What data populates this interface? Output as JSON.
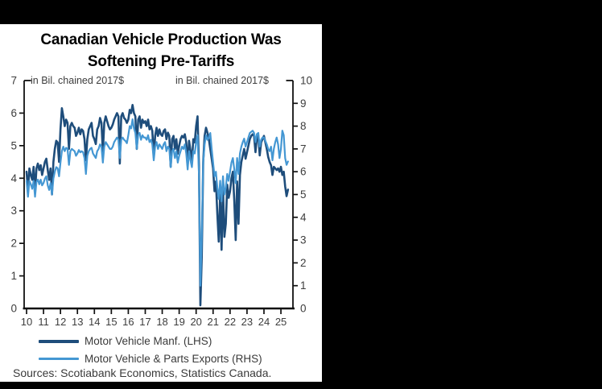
{
  "header": {
    "title_lines": [
      "Canadian Vehicle Production Was",
      "Softening Pre-Tariffs"
    ]
  },
  "footer": {
    "sources": "Sources: Scotiabank Economics, Statistics Canada."
  },
  "chart_data": {
    "type": "line",
    "title": "Canadian Vehicle Production Was Softening Pre-Tariffs",
    "grid": false,
    "legend_position": "bottom",
    "x": {
      "start_year": 2010,
      "frequency": "monthly",
      "tick_labels": [
        "10",
        "11",
        "12",
        "13",
        "14",
        "15",
        "16",
        "17",
        "18",
        "19",
        "20",
        "21",
        "22",
        "23",
        "24",
        "25"
      ]
    },
    "left_axis": {
      "title": "in Bil. chained 2017$",
      "min": 0,
      "max": 7,
      "tick_labels": [
        "0",
        "1",
        "2",
        "3",
        "4",
        "5",
        "6",
        "7"
      ]
    },
    "right_axis": {
      "title": "in Bil. chained 2017$",
      "min": 0,
      "max": 10,
      "tick_labels": [
        "0",
        "1",
        "2",
        "3",
        "4",
        "5",
        "6",
        "7",
        "8",
        "9",
        "10"
      ]
    },
    "series": [
      {
        "name": "Motor Vehicle Manf. (LHS)",
        "axis": "left",
        "color": "#1E4D7B",
        "values": [
          4.2,
          3.6,
          4.3,
          4.1,
          3.95,
          4.35,
          3.55,
          4.3,
          4.45,
          4.25,
          4.4,
          4.1,
          4.3,
          4.5,
          4.6,
          4.25,
          3.95,
          4.3,
          3.5,
          4.5,
          4.9,
          5.15,
          5.1,
          4.5,
          5.5,
          6.15,
          5.9,
          5.6,
          5.8,
          5.7,
          4.9,
          5.6,
          5.7,
          5.6,
          5.55,
          5.3,
          5.4,
          5.55,
          5.35,
          5.5,
          5.45,
          5.2,
          4.55,
          5.2,
          5.5,
          5.6,
          5.7,
          5.3,
          5.2,
          5.05,
          5.5,
          5.6,
          5.85,
          5.7,
          4.8,
          5.7,
          5.9,
          5.75,
          5.6,
          5.5,
          5.55,
          5.65,
          5.8,
          5.9,
          6.0,
          5.9,
          4.45,
          5.9,
          6.0,
          5.85,
          5.8,
          5.7,
          5.8,
          6.1,
          6.0,
          6.25,
          6.0,
          5.9,
          4.9,
          5.8,
          5.9,
          5.55,
          5.8,
          5.7,
          5.75,
          5.6,
          5.8,
          5.5,
          5.6,
          5.45,
          4.65,
          5.3,
          5.55,
          5.3,
          5.5,
          5.35,
          5.3,
          5.45,
          5.5,
          5.2,
          5.4,
          5.3,
          4.35,
          5.2,
          5.3,
          4.9,
          5.2,
          4.75,
          5.0,
          5.2,
          5.3,
          5.25,
          5.35,
          5.1,
          4.4,
          5.15,
          4.85,
          4.5,
          5.2,
          5.1,
          5.6,
          5.9,
          4.4,
          0.1,
          1.6,
          4.5,
          5.3,
          5.55,
          5.4,
          5.2,
          4.9,
          4.6,
          4.3,
          3.6,
          3.9,
          2.9,
          2.05,
          3.5,
          1.8,
          3.7,
          2.2,
          2.6,
          3.8,
          3.4,
          3.6,
          4.0,
          4.2,
          3.3,
          2.1,
          3.9,
          2.6,
          4.1,
          4.5,
          4.7,
          4.9,
          4.6,
          4.8,
          5.0,
          5.2,
          5.3,
          5.35,
          5.3,
          4.8,
          5.25,
          5.3,
          4.7,
          5.1,
          5.2,
          5.3,
          5.1,
          4.9,
          4.65,
          4.5,
          4.4,
          4.1,
          4.35,
          4.3,
          4.25,
          4.3,
          4.2,
          4.35,
          4.1,
          4.2,
          3.75,
          3.45,
          3.65
        ]
      },
      {
        "name": "Motor Vehicle & Parts Exports (RHS)",
        "axis": "right",
        "color": "#4497D3",
        "values": [
          5.6,
          4.9,
          5.6,
          5.45,
          5.25,
          5.6,
          4.9,
          5.55,
          5.65,
          5.45,
          5.65,
          5.4,
          5.5,
          5.7,
          5.8,
          5.4,
          5.2,
          5.5,
          5.0,
          5.7,
          6.0,
          6.2,
          6.15,
          5.8,
          6.4,
          6.9,
          7.1,
          6.9,
          7.05,
          7.0,
          6.3,
          6.9,
          7.0,
          6.95,
          6.9,
          6.7,
          6.8,
          6.95,
          6.85,
          6.9,
          6.85,
          6.6,
          5.9,
          6.7,
          6.9,
          7.0,
          7.05,
          6.8,
          6.7,
          6.6,
          6.9,
          7.0,
          7.2,
          7.1,
          6.4,
          7.1,
          7.3,
          7.2,
          7.1,
          7.0,
          7.0,
          7.1,
          7.3,
          7.4,
          7.5,
          7.4,
          6.6,
          7.4,
          7.5,
          7.4,
          7.35,
          7.25,
          7.6,
          8.0,
          7.9,
          8.3,
          7.9,
          7.7,
          7.0,
          7.6,
          7.7,
          7.4,
          7.6,
          7.5,
          7.5,
          7.4,
          7.6,
          7.3,
          7.4,
          7.2,
          6.5,
          7.1,
          7.3,
          7.0,
          7.2,
          7.1,
          7.0,
          7.2,
          7.3,
          6.9,
          7.1,
          7.0,
          6.2,
          6.9,
          7.0,
          6.6,
          6.9,
          6.4,
          6.7,
          6.9,
          7.1,
          7.0,
          7.2,
          6.8,
          6.1,
          6.9,
          6.5,
          6.2,
          6.9,
          6.8,
          7.3,
          7.6,
          5.9,
          1.0,
          3.2,
          6.4,
          7.2,
          7.6,
          7.4,
          7.5,
          7.7,
          7.0,
          6.4,
          5.8,
          6.0,
          5.3,
          4.8,
          5.6,
          4.7,
          5.8,
          5.0,
          5.3,
          5.9,
          5.6,
          6.0,
          6.4,
          6.6,
          6.1,
          5.5,
          6.6,
          5.9,
          6.8,
          7.1,
          7.3,
          7.45,
          7.1,
          7.3,
          7.5,
          7.7,
          7.75,
          7.8,
          7.7,
          7.3,
          7.65,
          7.7,
          7.1,
          7.4,
          7.5,
          7.5,
          7.35,
          7.2,
          7.0,
          6.9,
          7.1,
          6.5,
          7.0,
          7.3,
          7.5,
          7.2,
          6.6,
          7.0,
          7.8,
          7.6,
          6.6,
          6.3,
          6.45
        ]
      }
    ]
  }
}
